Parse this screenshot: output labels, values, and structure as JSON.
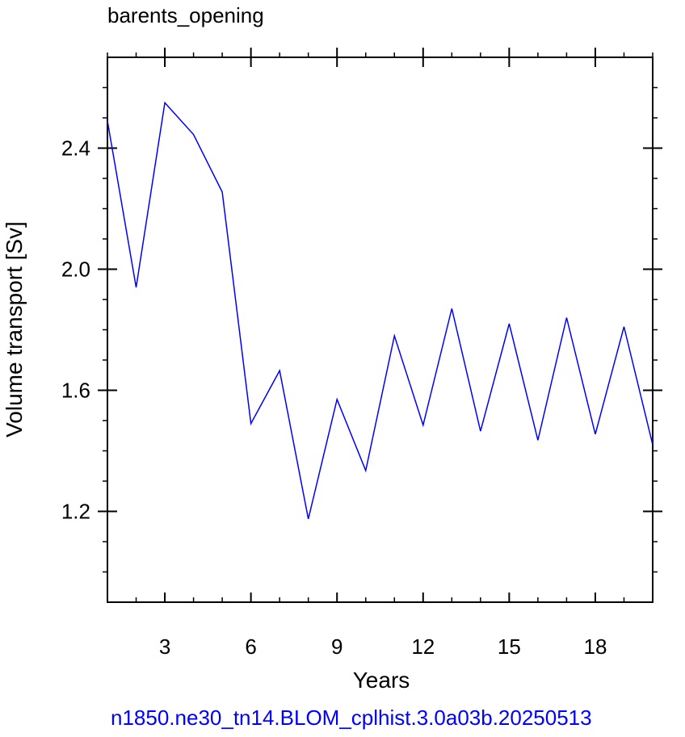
{
  "chart_data": {
    "type": "line",
    "title": "barents_opening",
    "xlabel": "Years",
    "ylabel": "Volume transport [Sv]",
    "footer": "n1850.ne30_tn14.BLOM_cplhist.3.0a03b.20250513",
    "xlim": [
      1,
      20
    ],
    "ylim": [
      0.9,
      2.7
    ],
    "x_ticks": [
      3,
      6,
      9,
      12,
      15,
      18
    ],
    "x_tick_labels": [
      "3",
      "6",
      "9",
      "12",
      "15",
      "18"
    ],
    "x_minor_ticks": [
      1,
      2,
      4,
      5,
      7,
      8,
      10,
      11,
      13,
      14,
      16,
      17,
      19,
      20
    ],
    "y_ticks": [
      1.2,
      1.6,
      2.0,
      2.4
    ],
    "y_tick_labels": [
      "1.2",
      "1.6",
      "2.0",
      "2.4"
    ],
    "y_minor_step": 0.1,
    "grid": false,
    "series": [
      {
        "color": "#0000ff",
        "x": [
          1,
          2,
          3,
          4,
          5,
          6,
          7,
          8,
          9,
          10,
          11,
          12,
          13,
          14,
          15,
          16,
          17,
          18,
          19,
          20
        ],
        "y": [
          2.49,
          1.94,
          2.55,
          2.445,
          2.255,
          1.49,
          1.665,
          1.175,
          1.57,
          1.335,
          1.78,
          1.485,
          1.87,
          1.465,
          1.82,
          1.435,
          1.84,
          1.455,
          1.81,
          1.42
        ]
      }
    ]
  }
}
